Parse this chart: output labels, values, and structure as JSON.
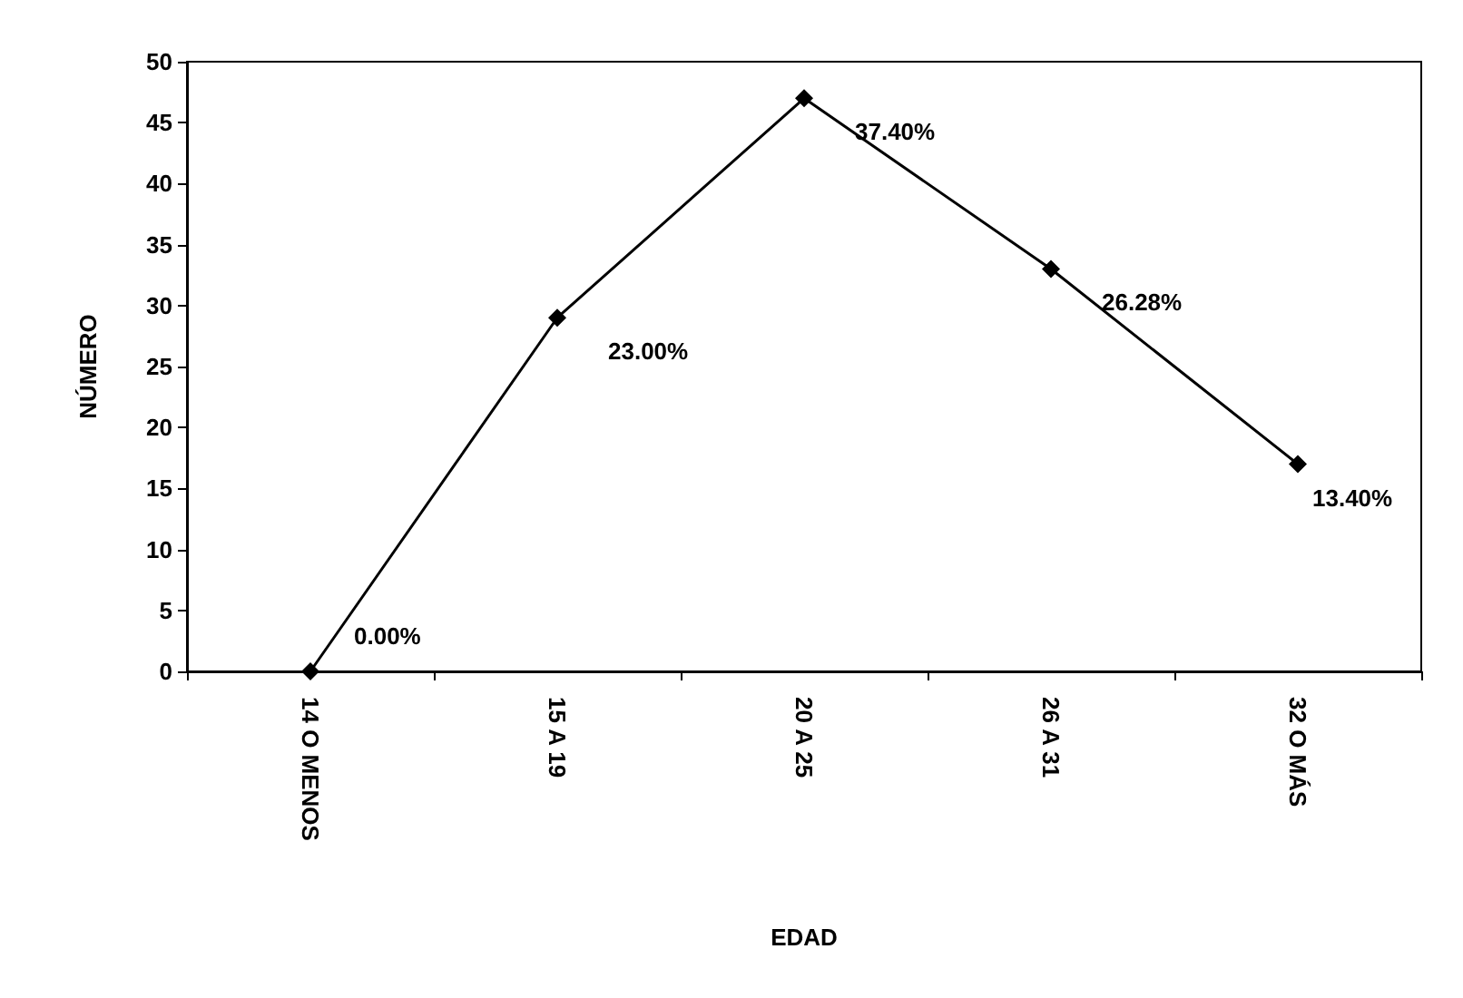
{
  "chart_data": {
    "type": "line",
    "xlabel": "EDAD",
    "ylabel": "NÚMERO",
    "categories": [
      "14 O MENOS",
      "15 A 19",
      "20 A 25",
      "26 A 31",
      "32 O MÁS"
    ],
    "series": [
      {
        "color": "#000000",
        "values": [
          0,
          29,
          47,
          33,
          17
        ]
      }
    ],
    "annotations": [
      {
        "text": "0.00%",
        "x": "14 O MENOS",
        "y": 0
      },
      {
        "text": "23.00%",
        "x": "15 A 19",
        "y": 29
      },
      {
        "text": "37.40%",
        "x": "20 A 25",
        "y": 47
      },
      {
        "text": "26.28%",
        "x": "26 A 31",
        "y": 33
      },
      {
        "text": "13.40%",
        "x": "32 O MÁS",
        "y": 17
      }
    ],
    "ylim": [
      0,
      50
    ],
    "yticks": [
      0,
      5,
      10,
      15,
      20,
      25,
      30,
      35,
      40,
      45,
      50
    ],
    "grid": false,
    "marker": "diamond",
    "line_style": "solid"
  }
}
